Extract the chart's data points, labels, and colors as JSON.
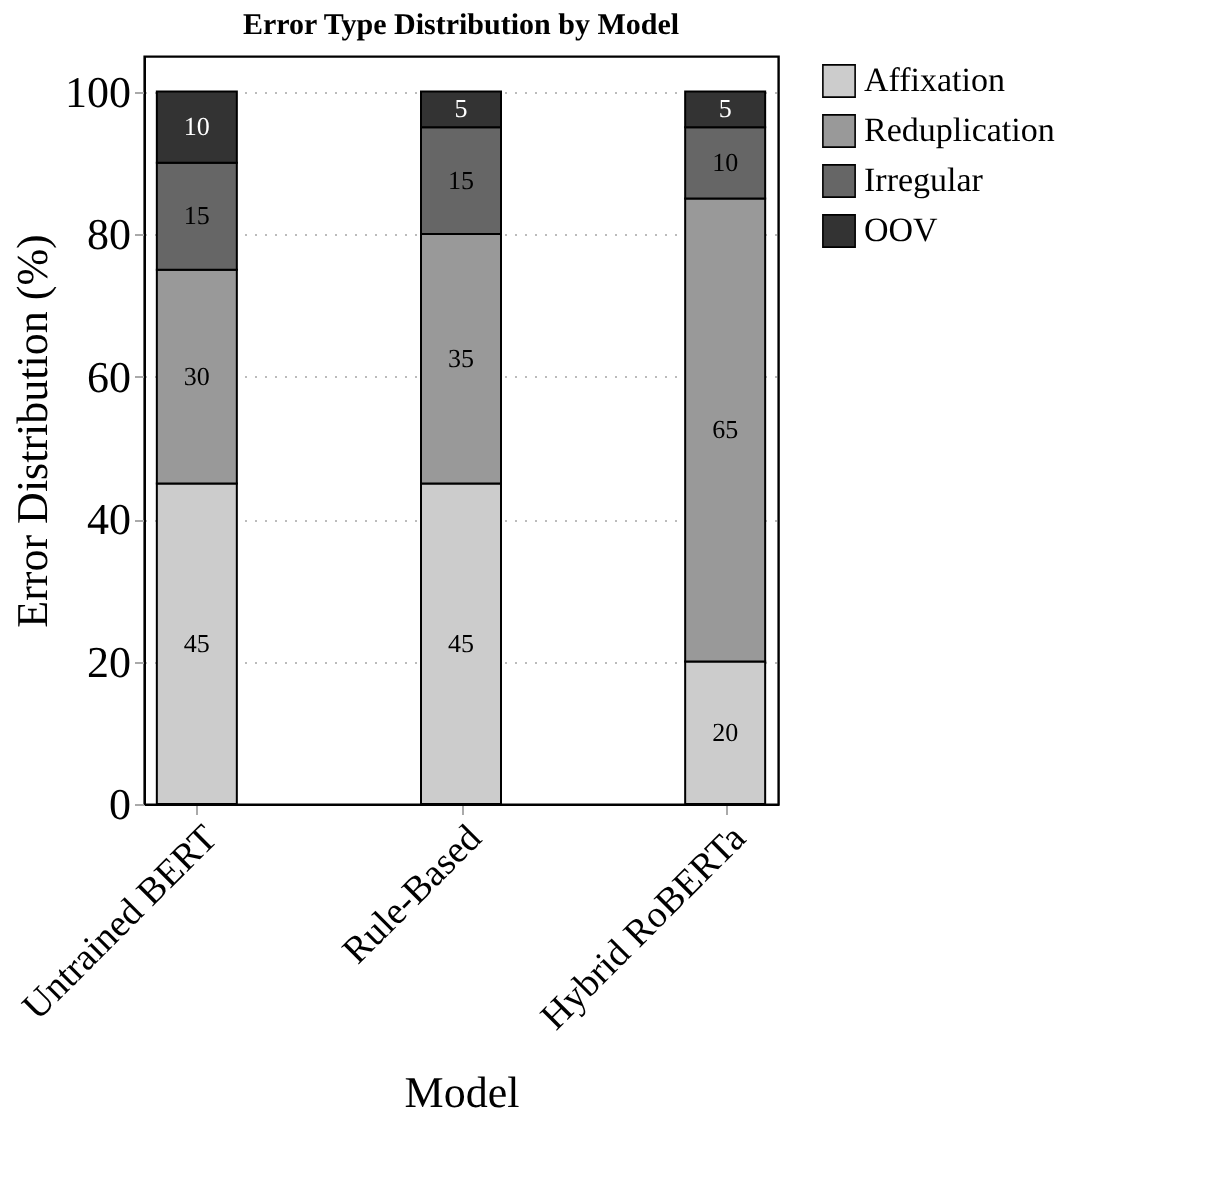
{
  "chart_data": {
    "type": "bar",
    "title": "Error Type Distribution by Model",
    "xlabel": "Model",
    "ylabel": "Error Distribution (%)",
    "categories": [
      "Untrained BERT",
      "Rule-Based",
      "Hybrid RoBERTa"
    ],
    "series": [
      {
        "name": "Affixation",
        "color": "#cccccc",
        "values": [
          45,
          45,
          20
        ]
      },
      {
        "name": "Reduplication",
        "color": "#999999",
        "values": [
          30,
          35,
          65
        ]
      },
      {
        "name": "Irregular",
        "color": "#666666",
        "values": [
          15,
          15,
          10
        ]
      },
      {
        "name": "OOV",
        "color": "#333333",
        "values": [
          10,
          5,
          5
        ]
      }
    ],
    "stacked": true,
    "data_labels": true,
    "ylim": [
      0,
      105
    ],
    "yticks": [
      0,
      20,
      40,
      60,
      80,
      100
    ],
    "grid": "y",
    "legend": "right"
  }
}
